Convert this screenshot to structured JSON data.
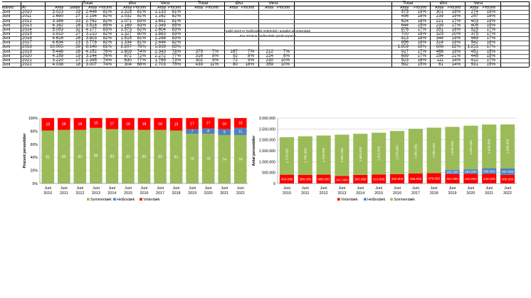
{
  "table": {
    "group_headers": {
      "left_total": "Total",
      "left_east": "Øst",
      "left_west": "Vest",
      "mid_total": "Total",
      "mid_east": "Øst",
      "mid_west": "Vest",
      "right_total": "Total",
      "right_east": "Øst",
      "right_west": "Vest"
    },
    "column_headers": {
      "month": "Måned",
      "year": "År",
      "count": "Antal",
      "sites": "Steder",
      "total_count": "Antal",
      "total_pct": "Procent",
      "east_count": "Antal",
      "east_pct": "Procent",
      "west_count": "Antal",
      "west_pct": "Procent",
      "mid_total_count": "Antal",
      "mid_total_pct": "Procent",
      "mid_east_count": "Antal",
      "mid_east_pct": "Procent",
      "mid_west_count": "Antal",
      "mid_west_pct": "Procent",
      "r_total_count": "Antal",
      "r_total_pct": "Procent",
      "r_east_count": "Antal",
      "r_east_pct": "Procent",
      "r_west_count": "Antal",
      "r_west_pct": "Procent"
    },
    "note_line1": "Indtil 2019 er helårsdæk indeholdt i antallet af vinterdæk.",
    "note_line2": "Fra 2019 er helårsdæk optalt separat.",
    "rows": [
      {
        "m": "Juni",
        "y": "2010",
        "a": "3.023",
        "s": "29",
        "ta": "2.448",
        "tp": "81%",
        "ea": "1.315",
        "ep": "81%",
        "wa": "1.133",
        "wp": "81%",
        "ma": "",
        "mp": "",
        "mea": "",
        "mep": "",
        "mwa": "",
        "mwp": "",
        "ra": "575",
        "rp": "19%",
        "rea": "301",
        "rep": "19%",
        "rwa": "274",
        "rwp": "19%"
      },
      {
        "m": "Juni",
        "y": "2011",
        "a": "2.690",
        "s": "27",
        "ta": "2.194",
        "tp": "82%",
        "ea": "1.032",
        "ep": "81%",
        "wa": "1.162",
        "wp": "82%",
        "ma": "",
        "mp": "",
        "mea": "",
        "mep": "",
        "mwa": "",
        "mwp": "",
        "ra": "496",
        "rp": "18%",
        "rea": "239",
        "rep": "19%",
        "rwa": "257",
        "rwp": "18%"
      },
      {
        "m": "Juni",
        "y": "2012",
        "a": "3.386",
        "s": "33",
        "ta": "2.762",
        "tp": "82%",
        "ea": "1.071",
        "ep": "83%",
        "wa": "1.691",
        "wp": "81%",
        "ma": "",
        "mp": "",
        "mea": "",
        "mep": "",
        "mwa": "",
        "mwp": "",
        "ra": "624",
        "rp": "18%",
        "rea": "221",
        "rep": "17%",
        "rwa": "403",
        "rwp": "19%"
      },
      {
        "m": "Juni",
        "y": "2013",
        "a": "4.162",
        "s": "28",
        "ta": "3.518",
        "tp": "85%",
        "ea": "1.169",
        "ep": "83%",
        "wa": "2.349",
        "wp": "85%",
        "ma": "",
        "mp": "",
        "mea": "",
        "mep": "",
        "mwa": "",
        "mwp": "",
        "ra": "644",
        "rp": "15%",
        "rea": "239",
        "rep": "17%",
        "rwa": "405",
        "rwp": "15%"
      },
      {
        "m": "Juni",
        "y": "2014",
        "a": "5.053",
        "s": "32",
        "ta": "4.177",
        "tp": "83%",
        "ea": "1.573",
        "ep": "82%",
        "wa": "2.604",
        "wp": "83%",
        "ma": "",
        "mp": "",
        "mea": "",
        "mep": "",
        "mwa": "",
        "mwp": "",
        "ra": "876",
        "rp": "17%",
        "rea": "351",
        "rep": "18%",
        "rwa": "525",
        "rwp": "17%"
      },
      {
        "m": "Juni",
        "y": "2015",
        "a": "3.910",
        "s": "27",
        "ta": "3.210",
        "tp": "82%",
        "ea": "1.327",
        "ep": "80%",
        "wa": "1.883",
        "wp": "83%",
        "ma": "",
        "mp": "",
        "mea": "",
        "mep": "",
        "mwa": "",
        "mwp": "",
        "ra": "700",
        "rp": "18%",
        "rea": "325",
        "rep": "20%",
        "rwa": "375",
        "rwp": "17%"
      },
      {
        "m": "Juni",
        "y": "2016",
        "a": "4.616",
        "s": "26",
        "ta": "3.803",
        "tp": "82%",
        "ea": "1.515",
        "ep": "81%",
        "wa": "2.288",
        "wp": "83%",
        "ma": "",
        "mp": "",
        "mea": "",
        "mep": "",
        "mwa": "",
        "mwp": "",
        "ra": "813",
        "rp": "18%",
        "rea": "344",
        "rep": "19%",
        "rwa": "469",
        "rwp": "17%"
      },
      {
        "m": "Juni",
        "y": "2017",
        "a": "4.634",
        "s": "23",
        "ta": "3.778",
        "tp": "82%",
        "ea": "1.334",
        "ep": "81%",
        "wa": "2.444",
        "wp": "82%",
        "ma": "",
        "mp": "",
        "mea": "",
        "mep": "",
        "mwa": "",
        "mwp": "",
        "ra": "856",
        "rp": "18%",
        "rea": "314",
        "rep": "19%",
        "rwa": "542",
        "rwp": "18%"
      },
      {
        "m": "Juni",
        "y": "2018",
        "a": "10.005",
        "s": "39",
        "ta": "8.146",
        "tp": "81%",
        "ea": "2.207",
        "ep": "78%",
        "wa": "5.939",
        "wp": "83%",
        "ma": "",
        "mp": "",
        "mea": "",
        "mep": "",
        "mwa": "",
        "mwp": "",
        "ra": "1.859",
        "rp": "19%",
        "rea": "608",
        "rep": "22%",
        "rwa": "1.251",
        "rwp": "17%"
      },
      {
        "m": "Juni",
        "y": "2019",
        "a": "5.448",
        "s": "28",
        "ta": "4.152",
        "tp": "76%",
        "ea": "1.809",
        "ep": "74%",
        "wa": "2.343",
        "wp": "78%",
        "ma": "379",
        "mp": "7%",
        "mea": "167",
        "mep": "7%",
        "mwa": "212",
        "mwp": "7%",
        "ra": "917",
        "rp": "17%",
        "rea": "466",
        "rep": "19%",
        "rwa": "451",
        "rwp": "15%"
      },
      {
        "m": "Juni",
        "y": "2020",
        "a": "4.159",
        "s": "19",
        "ta": "3.144",
        "tp": "76%",
        "ea": "872",
        "ep": "72%",
        "wa": "2.272",
        "wp": "77%",
        "ma": "316",
        "mp": "8%",
        "mea": "92",
        "mep": "8%",
        "mwa": "224",
        "mwp": "8%",
        "ra": "699",
        "rp": "17%",
        "rea": "254",
        "rep": "21%",
        "rwa": "445",
        "rwp": "15%"
      },
      {
        "m": "Juni",
        "y": "2021",
        "a": "3.220",
        "s": "17",
        "ta": "2.395",
        "tp": "74%",
        "ea": "630",
        "ep": "77%",
        "wa": "1.765",
        "wp": "73%",
        "ma": "302",
        "mp": "9%",
        "mea": "72",
        "mep": "9%",
        "mwa": "230",
        "mwp": "10%",
        "ra": "523",
        "rp": "16%",
        "rea": "111",
        "rep": "14%",
        "rwa": "412",
        "rwp": "17%"
      },
      {
        "m": "Juni",
        "y": "2022",
        "a": "4.038",
        "s": "18",
        "ta": "3.007",
        "tp": "74%",
        "ea": "304",
        "ep": "68%",
        "wa": "2.703",
        "wp": "75%",
        "ma": "439",
        "mp": "11%",
        "mea": "80",
        "mep": "18%",
        "mwa": "359",
        "mwp": "10%",
        "ra": "592",
        "rp": "15%",
        "rea": "61",
        "rep": "14%",
        "rwa": "531",
        "rwp": "15%"
      }
    ]
  },
  "chart_data": [
    {
      "type": "bar",
      "stacked": true,
      "ylabel": "Procent personbiler",
      "ylim": [
        0,
        100
      ],
      "yticks": [
        "0%",
        "20%",
        "40%",
        "60%",
        "80%",
        "100%"
      ],
      "categories": [
        "Juni 2010",
        "Juni 2011",
        "Juni 2012",
        "Juni 2013",
        "Juni 2014",
        "Juni 2015",
        "Juni 2016",
        "Juni 2017",
        "Juni 2018",
        "Juni 2019",
        "Juni 2020",
        "Juni 2021",
        "Juni 2022"
      ],
      "cat_line1": [
        "Juni",
        "Juni",
        "Juni",
        "Juni",
        "Juni",
        "Juni",
        "Juni",
        "Juni",
        "Juni",
        "Juni",
        "Juni",
        "Juni",
        "Juni"
      ],
      "cat_line2": [
        "2010",
        "2011",
        "2012",
        "2013",
        "2014",
        "2015",
        "2016",
        "2017",
        "2018",
        "2019",
        "2020",
        "2021",
        "2022"
      ],
      "series": [
        {
          "name": "Sommerdæk",
          "color": "#9bbb59",
          "values": [
            81,
            82,
            82,
            85,
            83,
            82,
            82,
            82,
            81,
            76,
            76,
            74,
            74
          ]
        },
        {
          "name": "Helårsdæk",
          "color": "#4f81bd",
          "values": [
            0,
            0,
            0,
            0,
            0,
            0,
            0,
            0,
            0,
            7,
            8,
            9,
            11
          ]
        },
        {
          "name": "Vinterdæk",
          "color": "#ff0000",
          "values": [
            19,
            18,
            18,
            15,
            17,
            18,
            18,
            18,
            19,
            17,
            17,
            16,
            15
          ]
        }
      ],
      "legend_position": "bottom",
      "grid": true
    },
    {
      "type": "bar",
      "stacked": true,
      "ylabel": "Antal personbiler",
      "ylim": [
        0,
        3000000
      ],
      "yticks": [
        "0",
        "500.000",
        "1.000.000",
        "1.500.000",
        "2.000.000",
        "2.500.000",
        "3.000.000"
      ],
      "categories": [
        "Juni 2010",
        "Juni 2011",
        "Juni 2012",
        "Juni 2013",
        "Juni 2014",
        "Juni 2015",
        "Juni 2016",
        "Juni 2017",
        "Juni 2018",
        "Juni 2019",
        "Juni 2020",
        "Juni 2021",
        "Juni 2022"
      ],
      "cat_line1": [
        "Juni",
        "Juni",
        "Juni",
        "Juni",
        "Juni",
        "Juni",
        "Juni",
        "Juni",
        "Juni",
        "Juni",
        "Juni",
        "Juni",
        "Juni"
      ],
      "cat_line2": [
        "2010",
        "2011",
        "2012",
        "2013",
        "2014",
        "2015",
        "2016",
        "2017",
        "2018",
        "2019",
        "2020",
        "2021",
        "2022"
      ],
      "series": [
        {
          "name": "Vinterdæk",
          "color": "#ff0000",
          "values": [
            404000,
            399000,
            406000,
            347000,
            395000,
            416000,
            432000,
            456000,
            478000,
            437000,
            446000,
            443000,
            400000
          ],
          "labels": [
            "404.000",
            "399.000",
            "406.000",
            "347.000",
            "395.000",
            "416.000",
            "432.000",
            "456.000",
            "478.000",
            "437.000",
            "446.000",
            "443.000",
            "400.000"
          ]
        },
        {
          "name": "Helårsdæk",
          "color": "#4f81bd",
          "values": [
            0,
            0,
            0,
            0,
            0,
            0,
            0,
            0,
            0,
            181000,
            202000,
            256000,
            297000
          ],
          "labels": [
            "",
            "",
            "",
            "",
            "",
            "",
            "",
            "",
            "",
            "181.000",
            "202.000",
            "256.000",
            "297.000"
          ]
        },
        {
          "name": "Sommerdæk",
          "color": "#9bbb59",
          "values": [
            1719000,
            1765000,
            1793000,
            1891000,
            1884000,
            1913000,
            1976000,
            2051000,
            2081000,
            1978000,
            2001000,
            2004000,
            2009000
          ],
          "labels": [
            "1.719.000",
            "1.765.000",
            "1.793.000",
            "1.891.000",
            "1.884.000",
            "1.913.000",
            "1.976.000",
            "2.051.000",
            "2.081.000",
            "1.978.000",
            "2.001.000",
            "2.004.000",
            "2.009.000"
          ]
        }
      ],
      "legend_position": "bottom",
      "grid": true
    }
  ]
}
